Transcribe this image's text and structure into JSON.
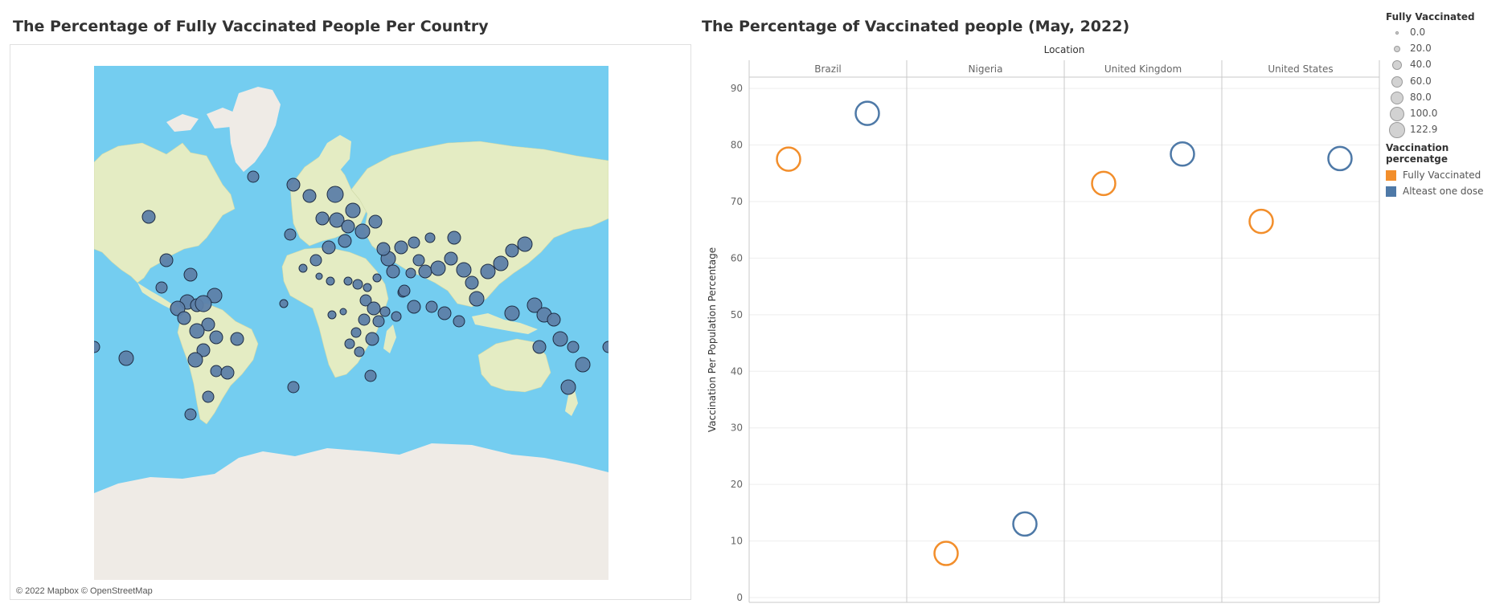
{
  "map": {
    "title": "The Percentage of Fully Vaccinated People Per Country",
    "credit": "© 2022 Mapbox © OpenStreetMap",
    "colors": {
      "ocean": "#74cdf0",
      "land": "#e4ecc3",
      "ice": "#efebe6",
      "marker": "#5d7fa8",
      "marker_stroke": "#1e2d44"
    }
  },
  "legend": {
    "size_title": "Fully Vaccinated",
    "sizes": [
      "0.0",
      "20.0",
      "40.0",
      "60.0",
      "80.0",
      "100.0",
      "122.9"
    ],
    "color_title": "Vaccination percenatge",
    "colors": [
      {
        "label": "Fully Vaccinated",
        "color": "#f28e2b"
      },
      {
        "label": "Alteast one dose",
        "color": "#4e79a7"
      }
    ]
  },
  "chart_data": {
    "type": "scatter",
    "title": "The Percentage of Vaccinated people (May, 2022)",
    "column_header": "Location",
    "ylabel": "Vaccination Per Population Percentage",
    "ylim": [
      0,
      92
    ],
    "yticks": [
      "0",
      "10",
      "20",
      "30",
      "40",
      "50",
      "60",
      "70",
      "80",
      "90"
    ],
    "categories": [
      "Brazil",
      "Nigeria",
      "United Kingdom",
      "United States"
    ],
    "series": [
      {
        "name": "Fully Vaccinated",
        "color": "#f28e2b",
        "values": [
          77.5,
          7.8,
          73.2,
          66.5
        ]
      },
      {
        "name": "Alteast one dose",
        "color": "#4e79a7",
        "values": [
          85.6,
          13.0,
          78.4,
          77.6
        ]
      }
    ]
  }
}
